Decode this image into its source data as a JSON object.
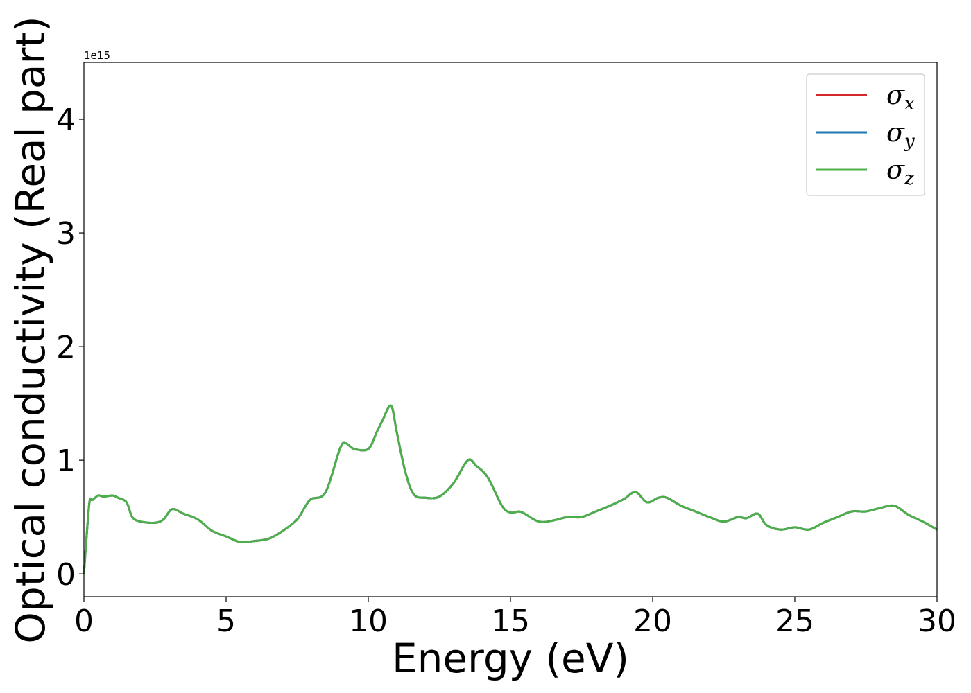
{
  "chart_data": {
    "type": "line",
    "xlabel": "Energy (eV)",
    "ylabel": "Optical conductivity (Real part)",
    "y_scale_label": "1e15",
    "xlim": [
      0,
      30
    ],
    "ylim": [
      -0.2,
      4.5
    ],
    "xticks": [
      0,
      5,
      10,
      15,
      20,
      25,
      30
    ],
    "yticks": [
      0,
      1,
      2,
      3,
      4
    ],
    "y_unit_multiplier": 1000000000000000.0,
    "grid": false,
    "legend_position": "top-right",
    "legend": [
      {
        "symbol": "σ",
        "subscript": "x",
        "color": "#d62728"
      },
      {
        "symbol": "σ",
        "subscript": "y",
        "color": "#1f77b4"
      },
      {
        "symbol": "σ",
        "subscript": "z",
        "color": "#4daf4a"
      }
    ],
    "x": [
      0,
      0.1,
      0.2,
      0.3,
      0.5,
      0.7,
      1.0,
      1.2,
      1.5,
      1.7,
      2.0,
      2.5,
      2.8,
      3.1,
      3.5,
      4.0,
      4.5,
      5.0,
      5.5,
      6.0,
      6.5,
      7.0,
      7.5,
      7.8,
      8.0,
      8.5,
      9.0,
      9.2,
      9.5,
      10.0,
      10.3,
      10.5,
      10.8,
      11.0,
      11.3,
      11.6,
      12.0,
      12.5,
      13.0,
      13.5,
      13.8,
      14.2,
      14.7,
      15.0,
      15.3,
      15.5,
      16.0,
      16.5,
      17.0,
      17.5,
      18.0,
      18.5,
      19.0,
      19.4,
      19.8,
      20.2,
      20.5,
      21.0,
      21.5,
      22.0,
      22.5,
      23.0,
      23.3,
      23.7,
      24.0,
      24.5,
      25.0,
      25.5,
      26.0,
      26.5,
      27.0,
      27.5,
      28.0,
      28.5,
      29.0,
      29.5,
      30.0
    ],
    "series": [
      {
        "name": "σx",
        "color": "#d62728",
        "y": [
          0,
          0.35,
          0.64,
          0.65,
          0.69,
          0.68,
          0.69,
          0.67,
          0.63,
          0.5,
          0.46,
          0.45,
          0.48,
          0.57,
          0.53,
          0.48,
          0.38,
          0.33,
          0.28,
          0.29,
          0.31,
          0.38,
          0.48,
          0.6,
          0.66,
          0.72,
          1.1,
          1.15,
          1.1,
          1.1,
          1.25,
          1.35,
          1.48,
          1.25,
          0.9,
          0.7,
          0.67,
          0.68,
          0.8,
          1.0,
          0.95,
          0.85,
          0.6,
          0.54,
          0.55,
          0.53,
          0.46,
          0.47,
          0.5,
          0.5,
          0.55,
          0.6,
          0.66,
          0.72,
          0.63,
          0.67,
          0.67,
          0.6,
          0.55,
          0.5,
          0.46,
          0.5,
          0.49,
          0.53,
          0.43,
          0.39,
          0.41,
          0.39,
          0.45,
          0.5,
          0.55,
          0.55,
          0.58,
          0.6,
          0.52,
          0.46,
          0.39
        ]
      },
      {
        "name": "σy",
        "color": "#1f77b4",
        "y": [
          0,
          0.35,
          0.64,
          0.65,
          0.69,
          0.68,
          0.69,
          0.67,
          0.63,
          0.5,
          0.46,
          0.45,
          0.48,
          0.57,
          0.53,
          0.48,
          0.38,
          0.33,
          0.28,
          0.29,
          0.31,
          0.38,
          0.48,
          0.6,
          0.66,
          0.72,
          1.1,
          1.15,
          1.1,
          1.1,
          1.25,
          1.35,
          1.48,
          1.25,
          0.9,
          0.7,
          0.67,
          0.68,
          0.8,
          1.0,
          0.95,
          0.85,
          0.6,
          0.54,
          0.55,
          0.53,
          0.46,
          0.47,
          0.5,
          0.5,
          0.55,
          0.6,
          0.66,
          0.72,
          0.63,
          0.67,
          0.67,
          0.6,
          0.55,
          0.5,
          0.46,
          0.5,
          0.49,
          0.53,
          0.43,
          0.39,
          0.41,
          0.39,
          0.45,
          0.5,
          0.55,
          0.55,
          0.58,
          0.6,
          0.52,
          0.46,
          0.39
        ]
      },
      {
        "name": "σz",
        "color": "#4daf4a",
        "y": [
          0,
          0.35,
          0.64,
          0.65,
          0.69,
          0.68,
          0.69,
          0.67,
          0.63,
          0.5,
          0.46,
          0.45,
          0.48,
          0.57,
          0.53,
          0.48,
          0.38,
          0.33,
          0.28,
          0.29,
          0.31,
          0.38,
          0.48,
          0.6,
          0.66,
          0.72,
          1.1,
          1.15,
          1.1,
          1.1,
          1.25,
          1.35,
          1.48,
          1.25,
          0.9,
          0.7,
          0.67,
          0.68,
          0.8,
          1.0,
          0.95,
          0.85,
          0.6,
          0.54,
          0.55,
          0.53,
          0.46,
          0.47,
          0.5,
          0.5,
          0.55,
          0.6,
          0.66,
          0.72,
          0.63,
          0.67,
          0.67,
          0.6,
          0.55,
          0.5,
          0.46,
          0.5,
          0.49,
          0.53,
          0.43,
          0.39,
          0.41,
          0.39,
          0.45,
          0.5,
          0.55,
          0.55,
          0.58,
          0.6,
          0.52,
          0.46,
          0.39
        ]
      }
    ]
  }
}
